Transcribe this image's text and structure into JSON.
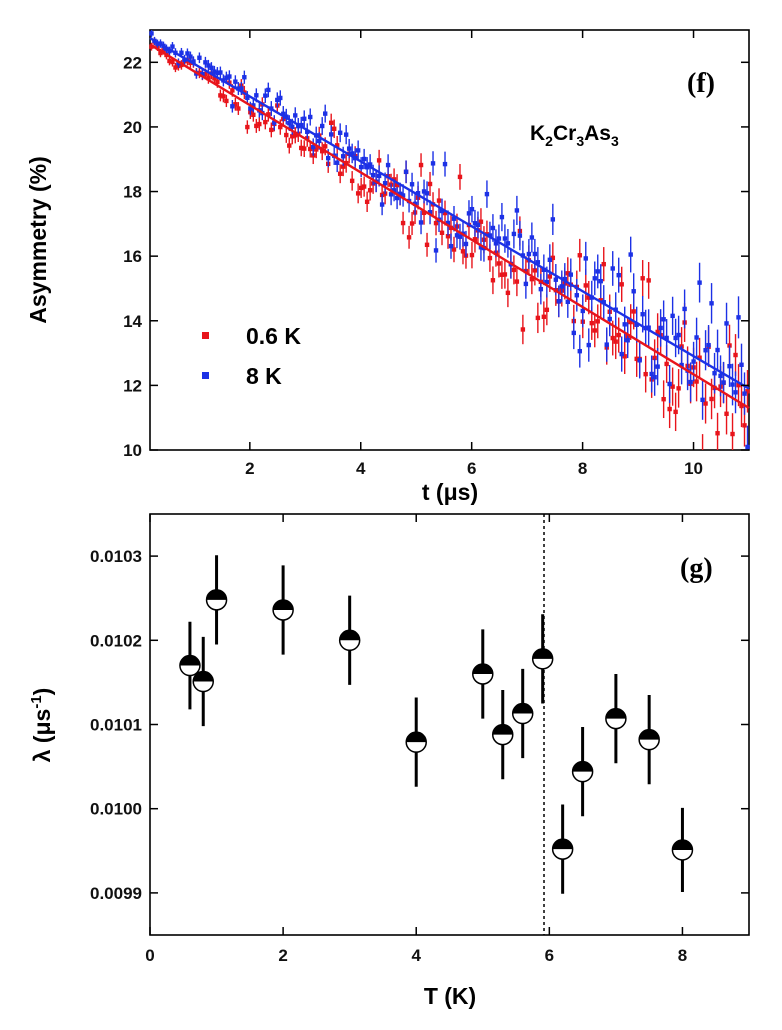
{
  "chart_data": [
    {
      "id": "f",
      "type": "scatter",
      "panel_label": "(f)",
      "annotation": {
        "parts": [
          "K",
          "2",
          "Cr",
          "3",
          "As",
          "3"
        ]
      },
      "xlabel": "t (μs)",
      "ylabel": "Asymmetry (%)",
      "xlim": [
        0.2,
        11.0
      ],
      "ylim": [
        10,
        23
      ],
      "xticks": [
        2,
        4,
        6,
        8,
        10
      ],
      "yticks": [
        10,
        12,
        14,
        16,
        18,
        20,
        22
      ],
      "legend_position": "lower-left",
      "series": [
        {
          "name": "0.6 K",
          "color": "#e8141b",
          "fit": {
            "x": [
              0.2,
              11.0
            ],
            "y": [
              22.55,
              11.3
            ]
          },
          "scatter": 0.13,
          "noise_growth": 0.09,
          "errorbar": 0.12,
          "errorbar_growth": 0.05,
          "n": 200,
          "seed": 11
        },
        {
          "name": "8 K",
          "color": "#1c31e6",
          "fit": {
            "x": [
              0.2,
              11.0
            ],
            "y": [
              22.75,
              11.9
            ]
          },
          "scatter": 0.12,
          "noise_growth": 0.08,
          "errorbar": 0.12,
          "errorbar_growth": 0.05,
          "n": 200,
          "seed": 29
        }
      ]
    },
    {
      "id": "g",
      "type": "scatter",
      "panel_label": "(g)",
      "xlabel": "T (K)",
      "ylabel": "λ (μs⁻¹)",
      "ylabel_parts": [
        "λ (μs",
        "-1",
        ")"
      ],
      "xlim": [
        0,
        9
      ],
      "ylim": [
        0.00985,
        0.01035
      ],
      "xticks": [
        0,
        2,
        4,
        6,
        8
      ],
      "yticks": [
        0.0099,
        0.01,
        0.0101,
        0.0102,
        0.0103
      ],
      "ytick_labels": [
        "0.0099",
        "0.0100",
        "0.0101",
        "0.0102",
        "0.0103"
      ],
      "vline": 5.92,
      "series": [
        {
          "name": "λ",
          "x": [
            0.6,
            0.8,
            1.0,
            2.0,
            3.0,
            4.0,
            5.0,
            5.3,
            5.6,
            5.9,
            6.2,
            6.5,
            7.0,
            7.5,
            8.0
          ],
          "y": [
            0.01017,
            0.010151,
            0.010248,
            0.010236,
            0.0102,
            0.010079,
            0.01016,
            0.010088,
            0.010113,
            0.010178,
            0.009952,
            0.010044,
            0.010107,
            0.010082,
            0.009951
          ],
          "yerr": [
            5.2e-05,
            5.3e-05,
            5.3e-05,
            5.3e-05,
            5.3e-05,
            5.3e-05,
            5.3e-05,
            5.3e-05,
            5.3e-05,
            5.3e-05,
            5.3e-05,
            5.3e-05,
            5.3e-05,
            5.3e-05,
            5e-05
          ]
        }
      ]
    }
  ]
}
